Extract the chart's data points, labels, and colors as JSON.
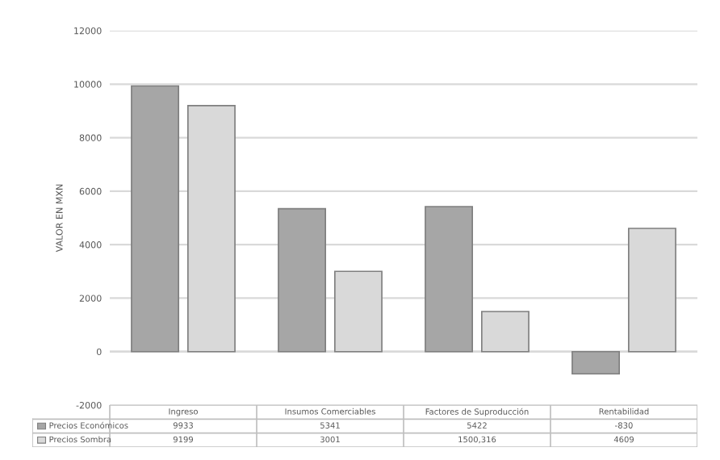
{
  "chart_data": {
    "type": "bar",
    "ylabel": "VALOR EN MXN",
    "categories": [
      "Ingreso",
      "Insumos Comerciables",
      "Factores de Suproducción",
      "Rentabilidad"
    ],
    "series": [
      {
        "name": "Precios Económicos",
        "color": "#a6a6a6",
        "values": [
          9933,
          5341,
          5422,
          -830
        ],
        "value_labels": [
          "9933",
          "5341",
          "5422",
          "-830"
        ]
      },
      {
        "name": "Precios Sombra",
        "color": "#d9d9d9",
        "values": [
          9199,
          3001,
          1500.316,
          4609
        ],
        "value_labels": [
          "9199",
          "3001",
          "1500,316",
          "4609"
        ]
      }
    ],
    "ylim": [
      -2000,
      12000
    ],
    "yticks": [
      -2000,
      0,
      2000,
      4000,
      6000,
      8000,
      10000,
      12000
    ],
    "grid": "y",
    "legend": "bottom",
    "tick_labels": "y"
  }
}
